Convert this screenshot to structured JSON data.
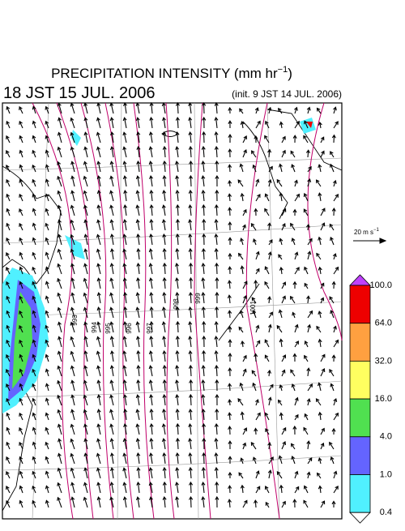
{
  "header": {
    "title": "PRECIPITATION INTENSITY (mm hr",
    "title_exponent": "−1",
    "title_end": ")",
    "valid_time": "18 JST 15 JUL. 2006",
    "init_time": "(init. 9 JST 14 JUL. 2006)"
  },
  "vector_legend": {
    "label": "20 m s",
    "exponent": "−1"
  },
  "colorbar": {
    "labels": [
      "100.0",
      "64.0",
      "32.0",
      "16.0",
      "4.0",
      "1.0",
      "0.4"
    ],
    "colors": [
      "#ee0000",
      "#ffa040",
      "#ffff60",
      "#50e050",
      "#6464ff",
      "#50f0ff"
    ],
    "over_color": "#c040ff",
    "under_color": "#ffffff"
  },
  "contour_labels": [
    "993",
    "994",
    "995",
    "996",
    "997",
    "998",
    "999",
    "1001"
  ]
}
